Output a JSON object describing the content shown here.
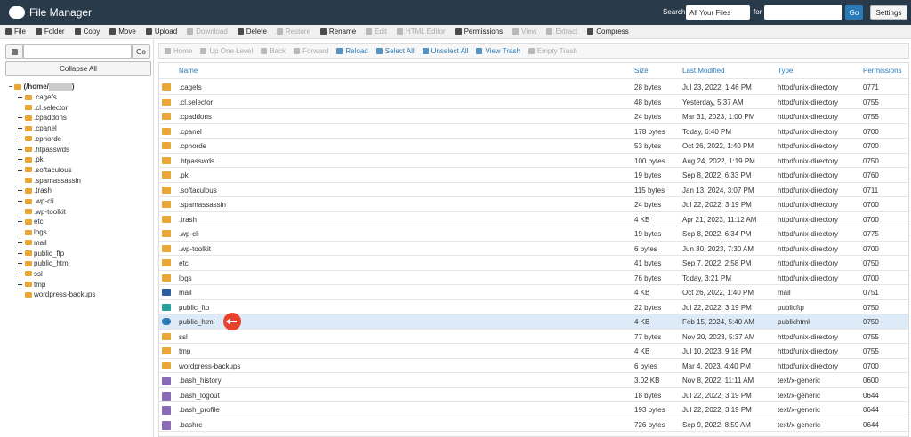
{
  "header": {
    "title": "File Manager",
    "search_label": "Search",
    "search_scope": "All Your Files",
    "for_label": "for",
    "go": "Go",
    "settings": "Settings"
  },
  "toolbar": [
    {
      "label": "File",
      "disabled": false
    },
    {
      "label": "Folder",
      "disabled": false
    },
    {
      "label": "Copy",
      "disabled": false
    },
    {
      "label": "Move",
      "disabled": false
    },
    {
      "label": "Upload",
      "disabled": false
    },
    {
      "label": "Download",
      "disabled": true
    },
    {
      "label": "Delete",
      "disabled": false
    },
    {
      "label": "Restore",
      "disabled": true
    },
    {
      "label": "Rename",
      "disabled": false
    },
    {
      "label": "Edit",
      "disabled": true
    },
    {
      "label": "HTML Editor",
      "disabled": true
    },
    {
      "label": "Permissions",
      "disabled": false
    },
    {
      "label": "View",
      "disabled": true
    },
    {
      "label": "Extract",
      "disabled": true
    },
    {
      "label": "Compress",
      "disabled": false
    }
  ],
  "sidebar": {
    "go": "Go",
    "collapse": "Collapse All",
    "root_prefix": "(/home/",
    "root_suffix": ")",
    "tree": [
      {
        "label": ".cagefs",
        "expandable": true
      },
      {
        "label": ".cl.selector",
        "expandable": false
      },
      {
        "label": ".cpaddons",
        "expandable": true
      },
      {
        "label": ".cpanel",
        "expandable": true
      },
      {
        "label": ".cphorde",
        "expandable": true
      },
      {
        "label": ".htpasswds",
        "expandable": true
      },
      {
        "label": ".pki",
        "expandable": true
      },
      {
        "label": ".softaculous",
        "expandable": true
      },
      {
        "label": ".spamassassin",
        "expandable": false
      },
      {
        "label": ".trash",
        "expandable": true
      },
      {
        "label": ".wp-cli",
        "expandable": true
      },
      {
        "label": ".wp-toolkit",
        "expandable": false
      },
      {
        "label": "etc",
        "expandable": true
      },
      {
        "label": "logs",
        "expandable": false
      },
      {
        "label": "mail",
        "expandable": true
      },
      {
        "label": "public_ftp",
        "expandable": true
      },
      {
        "label": "public_html",
        "expandable": true
      },
      {
        "label": "ssl",
        "expandable": true
      },
      {
        "label": "tmp",
        "expandable": true
      },
      {
        "label": "wordpress-backups",
        "expandable": false
      }
    ]
  },
  "navbar": [
    {
      "label": "Home",
      "disabled": true
    },
    {
      "label": "Up One Level",
      "disabled": true
    },
    {
      "label": "Back",
      "disabled": true
    },
    {
      "label": "Forward",
      "disabled": true
    },
    {
      "label": "Reload",
      "disabled": false
    },
    {
      "label": "Select All",
      "disabled": false
    },
    {
      "label": "Unselect All",
      "disabled": false
    },
    {
      "label": "View Trash",
      "disabled": false
    },
    {
      "label": "Empty Trash",
      "disabled": true
    }
  ],
  "table": {
    "columns": [
      "Name",
      "Size",
      "Last Modified",
      "Type",
      "Permissions"
    ],
    "rows": [
      {
        "icon": "folder",
        "cells": [
          ".cagefs",
          "28 bytes",
          "Jul 23, 2022, 1:46 PM",
          "httpd/unix-directory",
          "0771"
        ]
      },
      {
        "icon": "folder",
        "cells": [
          ".cl.selector",
          "48 bytes",
          "Yesterday, 5:37 AM",
          "httpd/unix-directory",
          "0755"
        ]
      },
      {
        "icon": "folder",
        "cells": [
          ".cpaddons",
          "24 bytes",
          "Mar 31, 2023, 1:00 PM",
          "httpd/unix-directory",
          "0755"
        ]
      },
      {
        "icon": "folder",
        "cells": [
          ".cpanel",
          "178 bytes",
          "Today, 6:40 PM",
          "httpd/unix-directory",
          "0700"
        ]
      },
      {
        "icon": "folder",
        "cells": [
          ".cphorde",
          "53 bytes",
          "Oct 26, 2022, 1:40 PM",
          "httpd/unix-directory",
          "0700"
        ]
      },
      {
        "icon": "folder",
        "cells": [
          ".htpasswds",
          "100 bytes",
          "Aug 24, 2022, 1:19 PM",
          "httpd/unix-directory",
          "0750"
        ]
      },
      {
        "icon": "folder",
        "cells": [
          ".pki",
          "19 bytes",
          "Sep 8, 2022, 6:33 PM",
          "httpd/unix-directory",
          "0760"
        ]
      },
      {
        "icon": "folder",
        "cells": [
          ".softaculous",
          "115 bytes",
          "Jan 13, 2024, 3:07 PM",
          "httpd/unix-directory",
          "0711"
        ]
      },
      {
        "icon": "folder",
        "cells": [
          ".spamassassin",
          "24 bytes",
          "Jul 22, 2022, 3:19 PM",
          "httpd/unix-directory",
          "0700"
        ]
      },
      {
        "icon": "folder",
        "cells": [
          ".trash",
          "4 KB",
          "Apr 21, 2023, 11:12 AM",
          "httpd/unix-directory",
          "0700"
        ]
      },
      {
        "icon": "folder",
        "cells": [
          ".wp-cli",
          "19 bytes",
          "Sep 8, 2022, 6:34 PM",
          "httpd/unix-directory",
          "0775"
        ]
      },
      {
        "icon": "folder",
        "cells": [
          ".wp-toolkit",
          "6 bytes",
          "Jun 30, 2023, 7:30 AM",
          "httpd/unix-directory",
          "0700"
        ]
      },
      {
        "icon": "folder",
        "cells": [
          "etc",
          "41 bytes",
          "Sep 7, 2022, 2:58 PM",
          "httpd/unix-directory",
          "0750"
        ]
      },
      {
        "icon": "folder",
        "cells": [
          "logs",
          "76 bytes",
          "Today, 3:21 PM",
          "httpd/unix-directory",
          "0700"
        ]
      },
      {
        "icon": "mail",
        "cells": [
          "mail",
          "4 KB",
          "Oct 26, 2022, 1:40 PM",
          "mail",
          "0751"
        ]
      },
      {
        "icon": "ftp",
        "cells": [
          "public_ftp",
          "22 bytes",
          "Jul 22, 2022, 3:19 PM",
          "publicftp",
          "0750"
        ]
      },
      {
        "icon": "globe",
        "selected": true,
        "cells": [
          "public_html",
          "4 KB",
          "Feb 15, 2024, 5:40 AM",
          "publichtml",
          "0750"
        ]
      },
      {
        "icon": "folder",
        "cells": [
          "ssl",
          "77 bytes",
          "Nov 20, 2023, 5:37 AM",
          "httpd/unix-directory",
          "0755"
        ]
      },
      {
        "icon": "folder",
        "cells": [
          "tmp",
          "4 KB",
          "Jul 10, 2023, 9:18 PM",
          "httpd/unix-directory",
          "0755"
        ]
      },
      {
        "icon": "folder",
        "cells": [
          "wordpress-backups",
          "6 bytes",
          "Mar 4, 2023, 4:40 PM",
          "httpd/unix-directory",
          "0700"
        ]
      },
      {
        "icon": "file",
        "cells": [
          ".bash_history",
          "3.02 KB",
          "Nov 8, 2022, 11:11 AM",
          "text/x-generic",
          "0600"
        ]
      },
      {
        "icon": "file",
        "cells": [
          ".bash_logout",
          "18 bytes",
          "Jul 22, 2022, 3:19 PM",
          "text/x-generic",
          "0644"
        ]
      },
      {
        "icon": "file",
        "cells": [
          ".bash_profile",
          "193 bytes",
          "Jul 22, 2022, 3:19 PM",
          "text/x-generic",
          "0644"
        ]
      },
      {
        "icon": "file",
        "cells": [
          ".bashrc",
          "726 bytes",
          "Sep 9, 2022, 8:59 AM",
          "text/x-generic",
          "0644"
        ]
      }
    ]
  }
}
